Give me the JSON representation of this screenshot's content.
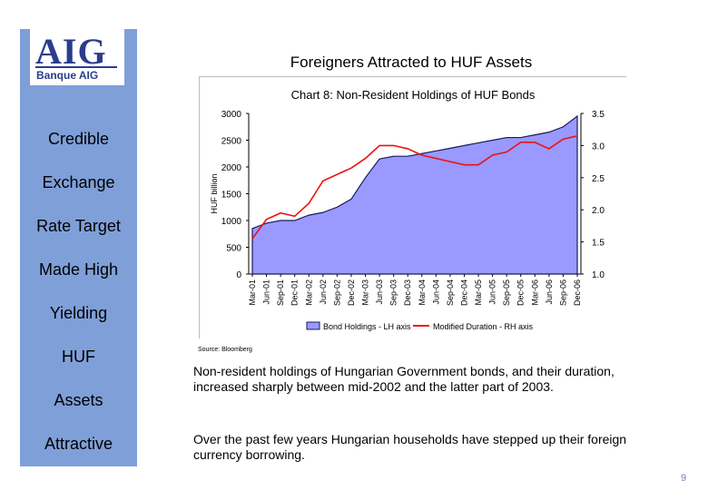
{
  "logo": {
    "brand": "AIG",
    "subtitle": "Banque AIG"
  },
  "sidebar": {
    "words": [
      "Credible",
      "Exchange",
      "Rate Target",
      "Made High",
      "Yielding",
      "HUF",
      "Assets",
      "Attractive"
    ]
  },
  "slide_title": "Foreigners Attracted to HUF Assets",
  "chart_data": {
    "type": "area",
    "title": "Chart 8: Non-Resident Holdings of HUF Bonds",
    "ylabel": "HUF billion",
    "ylabel_right": "",
    "ylim": [
      0,
      3000
    ],
    "y2lim": [
      1.0,
      3.5
    ],
    "yticks": [
      0,
      500,
      1000,
      1500,
      2000,
      2500,
      3000
    ],
    "y2ticks": [
      "1.0",
      "1.5",
      "2.0",
      "2.5",
      "3.0",
      "3.5"
    ],
    "x": [
      "Mar-01",
      "Jun-01",
      "Sep-01",
      "Dec-01",
      "Mar-02",
      "Jun-02",
      "Sep-02",
      "Dec-02",
      "Mar-03",
      "Jun-03",
      "Sep-03",
      "Dec-03",
      "Mar-04",
      "Jun-04",
      "Sep-04",
      "Dec-04",
      "Mar-05",
      "Jun-05",
      "Sep-05",
      "Dec-05",
      "Mar-06",
      "Jun-06",
      "Sep-06",
      "Dec-06"
    ],
    "series": [
      {
        "name": "Bond Holdings - LH axis",
        "axis": "left",
        "color": "#9999ff",
        "values": [
          850,
          950,
          1000,
          1000,
          1100,
          1150,
          1250,
          1400,
          1800,
          2150,
          2200,
          2200,
          2250,
          2300,
          2350,
          2400,
          2450,
          2500,
          2550,
          2550,
          2600,
          2650,
          2750,
          2950
        ]
      },
      {
        "name": "Modified Duration - RH axis",
        "axis": "right",
        "color": "#ee1111",
        "values": [
          1.55,
          1.85,
          1.95,
          1.9,
          2.1,
          2.45,
          2.55,
          2.65,
          2.8,
          3.0,
          3.0,
          2.95,
          2.85,
          2.8,
          2.75,
          2.7,
          2.7,
          2.85,
          2.9,
          3.05,
          3.05,
          2.95,
          3.1,
          3.15
        ]
      }
    ],
    "legend_position": "bottom"
  },
  "source": "Source: Bloomberg",
  "paragraphs": [
    "Non-resident holdings of Hungarian Government bonds, and their duration, increased sharply between mid-2002 and the latter part of 2003.",
    "Over the past few years Hungarian households have stepped up their foreign currency borrowing."
  ],
  "page_number": "9"
}
